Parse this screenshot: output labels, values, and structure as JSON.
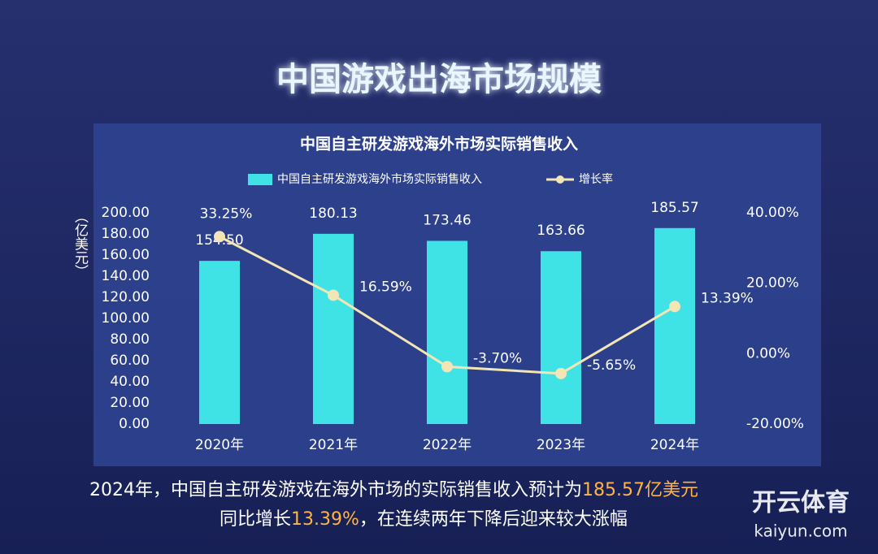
{
  "header": {
    "title": "中国游戏出海市场规模"
  },
  "chart_data": {
    "type": "bar",
    "title": "中国自主研发游戏海外市场实际销售收入",
    "y_label": "（亿美元）",
    "categories": [
      "2020年",
      "2021年",
      "2022年",
      "2023年",
      "2024年"
    ],
    "series": [
      {
        "name": "中国自主研发游戏海外市场实际销售收入",
        "type": "bar",
        "color": "#3fe3e6",
        "values": [
          154.5,
          180.13,
          173.46,
          163.66,
          185.57
        ],
        "value_labels": [
          "154.50",
          "180.13",
          "173.46",
          "163.66",
          "185.57"
        ]
      },
      {
        "name": "增长率",
        "type": "line",
        "axis": "y2",
        "color": "#f3e6b4",
        "values": [
          33.25,
          16.59,
          -3.7,
          -5.65,
          13.39
        ],
        "value_labels": [
          "33.25%",
          "16.59%",
          "-3.70%",
          "-5.65%",
          "13.39%"
        ]
      }
    ],
    "ylim": [
      0,
      200
    ],
    "yticks": [
      {
        "value": 0,
        "label": "0.00"
      },
      {
        "value": 20,
        "label": "20.00"
      },
      {
        "value": 40,
        "label": "40.00"
      },
      {
        "value": 60,
        "label": "60.00"
      },
      {
        "value": 80,
        "label": "80.00"
      },
      {
        "value": 100,
        "label": "100.00"
      },
      {
        "value": 120,
        "label": "120.00"
      },
      {
        "value": 140,
        "label": "140.00"
      },
      {
        "value": 160,
        "label": "160.00"
      },
      {
        "value": 180,
        "label": "180.00"
      },
      {
        "value": 200,
        "label": "200.00"
      }
    ],
    "y2lim": [
      -20,
      40
    ],
    "y2ticks": [
      {
        "value": -20,
        "label": "-20.00%"
      },
      {
        "value": 0,
        "label": "0.00%"
      },
      {
        "value": 20,
        "label": "20.00%"
      },
      {
        "value": 40,
        "label": "40.00%"
      }
    ],
    "legend": "top"
  },
  "caption": {
    "line1": [
      "2024年，中国自主研发游戏在海外市场的实际销售收入预计为",
      "185.57亿美元"
    ],
    "line2": [
      "同比增长",
      "13.39%",
      "，在连续两年下降后迎来较大涨幅"
    ]
  },
  "watermark": {
    "brand": "开云体育",
    "site": "kaiyun.com"
  }
}
